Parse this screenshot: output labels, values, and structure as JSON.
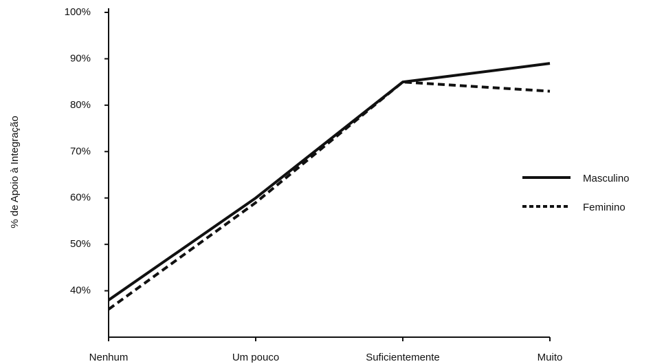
{
  "chart_data": {
    "type": "line",
    "y_label": "% de Apoio à Integração",
    "categories": [
      "Nenhum",
      "Um pouco",
      "Suficientemente",
      "Muito"
    ],
    "series": [
      {
        "name": "Masculino",
        "color": "#111111",
        "dash": "solid",
        "values": [
          38,
          60,
          85,
          89
        ]
      },
      {
        "name": "Feminino",
        "color": "#111111",
        "dash": "dashed",
        "values": [
          36,
          59,
          85,
          83
        ]
      }
    ],
    "ylim": [
      30,
      100
    ],
    "yticks": [
      {
        "value": 40,
        "label": "40%"
      },
      {
        "value": 50,
        "label": "50%"
      },
      {
        "value": 60,
        "label": "60%"
      },
      {
        "value": 70,
        "label": "70%"
      },
      {
        "value": 80,
        "label": "80%"
      },
      {
        "value": 90,
        "label": "90%"
      },
      {
        "value": 100,
        "label": "100%"
      }
    ],
    "legend": "right"
  }
}
